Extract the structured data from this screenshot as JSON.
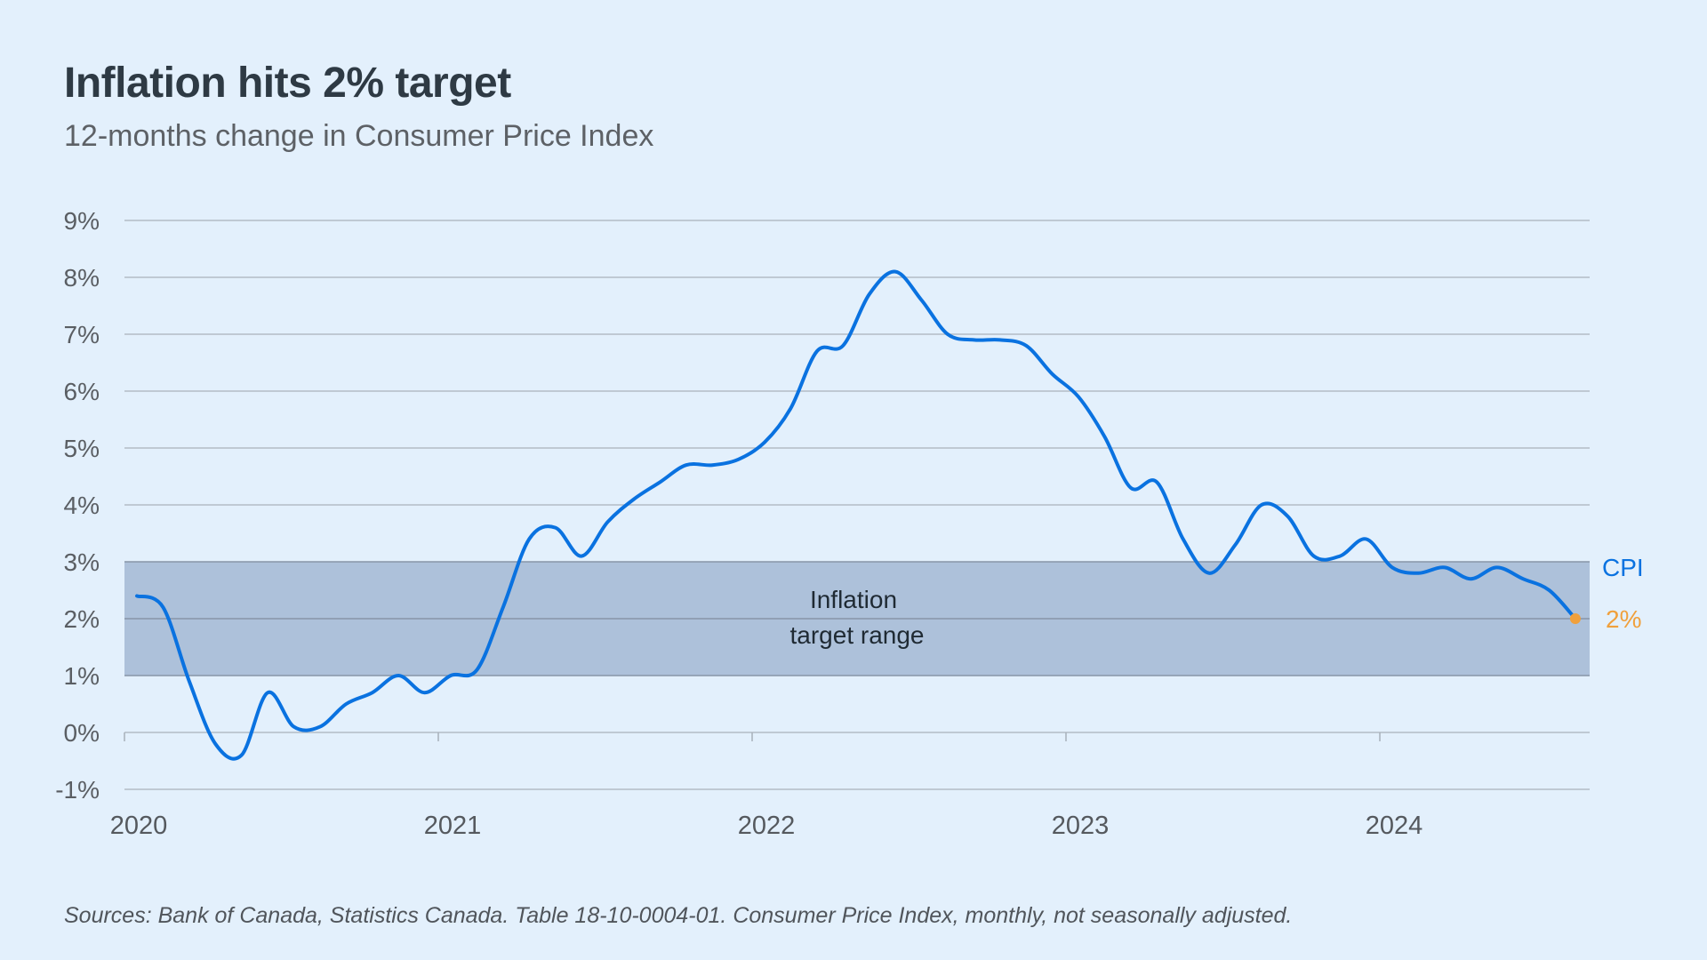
{
  "header": {
    "title": "Inflation hits 2% target",
    "subtitle": "12-months change in Consumer Price Index"
  },
  "footer": {
    "source": "Sources: Bank of Canada, Statistics Canada. Table 18-10-0004-01.  Consumer Price Index, monthly, not seasonally adjusted."
  },
  "colors": {
    "line": "#0a72e0",
    "endpoint": "#f0a03c",
    "band": "#adc1da",
    "grid": "#b3bcc5",
    "background": "#e3f0fc"
  },
  "chart_data": {
    "type": "line",
    "title": "Inflation hits 2% target",
    "subtitle": "12-months change in Consumer Price Index",
    "xlabel": "",
    "ylabel": "",
    "ylim": [
      -1,
      9
    ],
    "yticks": [
      "-1%",
      "0%",
      "1%",
      "2%",
      "3%",
      "4%",
      "5%",
      "6%",
      "7%",
      "8%",
      "9%"
    ],
    "ytick_values": [
      -1,
      0,
      1,
      2,
      3,
      4,
      5,
      6,
      7,
      8,
      9
    ],
    "xticks": [
      "2020",
      "2021",
      "2022",
      "2023",
      "2024"
    ],
    "grid": true,
    "legend": "none (direct label at line end, right)",
    "band": {
      "label_line1": "Inflation",
      "label_line2": "target range",
      "from": 1,
      "to": 3
    },
    "series": [
      {
        "name": "CPI",
        "end_label": "2%",
        "start": "2020-01",
        "frequency": "monthly",
        "values": [
          2.4,
          2.2,
          0.9,
          -0.2,
          -0.4,
          0.7,
          0.1,
          0.1,
          0.5,
          0.7,
          1.0,
          0.7,
          1.0,
          1.1,
          2.2,
          3.4,
          3.6,
          3.1,
          3.7,
          4.1,
          4.4,
          4.7,
          4.7,
          4.8,
          5.1,
          5.7,
          6.7,
          6.8,
          7.7,
          8.1,
          7.6,
          7.0,
          6.9,
          6.9,
          6.8,
          6.3,
          5.9,
          5.2,
          4.3,
          4.4,
          3.4,
          2.8,
          3.3,
          4.0,
          3.8,
          3.1,
          3.1,
          3.4,
          2.9,
          2.8,
          2.9,
          2.7,
          2.9,
          2.7,
          2.5,
          2.0
        ]
      }
    ]
  }
}
